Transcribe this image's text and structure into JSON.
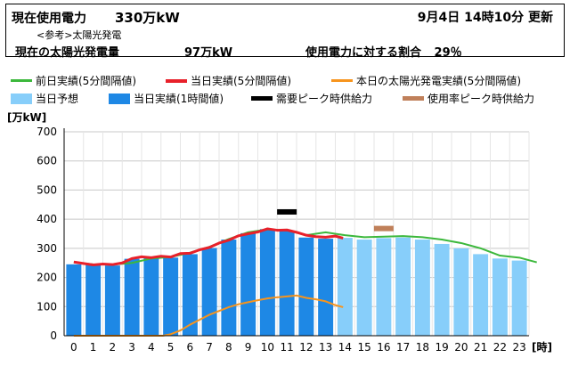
{
  "header": {
    "usage_label": "現在使用電力",
    "usage_value": "330万kW",
    "updated": "9月4日 14時10分 更新",
    "reference_note": "<参考>太陽光発電",
    "solar_label": "現在の太陽光発電量",
    "solar_value": "97万kW",
    "ratio_label": "使用電力に対する割合",
    "ratio_value": "29％"
  },
  "legend": [
    {
      "label": "前日実績(5分間隔値)",
      "kind": "line",
      "color": "#3cb83c"
    },
    {
      "label": "当日実績(5分間隔値)",
      "kind": "line",
      "color": "#e8202a"
    },
    {
      "label": "本日の太陽光発電実績(5分間隔値)",
      "kind": "line",
      "color": "#f7941d"
    },
    {
      "label": "当日予想",
      "kind": "box",
      "color": "#87cefa"
    },
    {
      "label": "当日実績(1時間値)",
      "kind": "box",
      "color": "#1e88e5"
    },
    {
      "label": "需要ピーク時供給力",
      "kind": "line",
      "color": "#000000"
    },
    {
      "label": "使用率ピーク時供給力",
      "kind": "line",
      "color": "#c0805a"
    }
  ],
  "chart_data": {
    "type": "bar",
    "ylabel": "[万kW]",
    "xlabel": "[時]",
    "ylim": [
      0,
      700
    ],
    "yticks": [
      0,
      100,
      200,
      300,
      400,
      500,
      600,
      700
    ],
    "categories": [
      "0",
      "1",
      "2",
      "3",
      "4",
      "5",
      "6",
      "7",
      "8",
      "9",
      "10",
      "11",
      "12",
      "13",
      "14",
      "15",
      "16",
      "17",
      "18",
      "19",
      "20",
      "21",
      "22",
      "23"
    ],
    "grid": true,
    "series": [
      {
        "name": "当日実績(1時間値)",
        "type": "bar",
        "color": "#1e88e5",
        "values": [
          245,
          243,
          241,
          264,
          267,
          268,
          280,
          301,
          330,
          352,
          366,
          360,
          337,
          333,
          null,
          null,
          null,
          null,
          null,
          null,
          null,
          null,
          null,
          null
        ]
      },
      {
        "name": "当日予想",
        "type": "bar",
        "color": "#87cefa",
        "values": [
          null,
          null,
          null,
          null,
          null,
          null,
          null,
          null,
          null,
          null,
          null,
          null,
          null,
          null,
          336,
          330,
          335,
          337,
          330,
          315,
          300,
          280,
          265,
          258
        ]
      },
      {
        "name": "前日実績(5分間隔値)",
        "type": "line",
        "color": "#3cb83c",
        "x": [
          0,
          1,
          2,
          3,
          4,
          5,
          6,
          7,
          8,
          9,
          10,
          11,
          12,
          13,
          14,
          15,
          16,
          17,
          18,
          19,
          20,
          21,
          22,
          23,
          23.9
        ],
        "values": [
          252,
          245,
          244,
          250,
          265,
          270,
          285,
          305,
          332,
          355,
          365,
          362,
          345,
          355,
          345,
          338,
          340,
          342,
          338,
          330,
          318,
          300,
          275,
          268,
          252
        ]
      },
      {
        "name": "当日実績(5分間隔値)",
        "type": "line",
        "color": "#e8202a",
        "x": [
          0,
          0.5,
          1,
          1.5,
          2,
          2.5,
          3,
          3.5,
          4,
          4.5,
          5,
          5.5,
          6,
          6.5,
          7,
          7.5,
          8,
          8.5,
          9,
          9.5,
          10,
          10.5,
          11,
          11.5,
          12,
          12.5,
          13,
          13.5,
          13.9
        ],
        "values": [
          253,
          248,
          243,
          246,
          244,
          250,
          265,
          271,
          268,
          273,
          270,
          282,
          283,
          295,
          303,
          318,
          328,
          343,
          350,
          356,
          367,
          362,
          363,
          355,
          345,
          340,
          338,
          342,
          335
        ]
      },
      {
        "name": "本日の太陽光発電実績(5分間隔値)",
        "type": "line",
        "color": "#f7941d",
        "x": [
          0,
          1,
          2,
          3,
          4,
          4.6,
          5,
          5.5,
          6,
          6.5,
          7,
          7.5,
          8,
          8.5,
          9,
          9.5,
          10,
          10.5,
          11,
          11.5,
          12,
          12.5,
          13,
          13.5,
          13.9
        ],
        "values": [
          0,
          0,
          0,
          0,
          0,
          0,
          5,
          18,
          38,
          55,
          72,
          85,
          98,
          108,
          115,
          122,
          128,
          132,
          135,
          138,
          130,
          125,
          118,
          105,
          98
        ]
      },
      {
        "name": "需要ピーク時供給力",
        "type": "marker",
        "color": "#000000",
        "x": 11,
        "value": 425
      },
      {
        "name": "使用率ピーク時供給力",
        "type": "marker",
        "color": "#c0805a",
        "x": 16,
        "value": 368
      }
    ]
  }
}
